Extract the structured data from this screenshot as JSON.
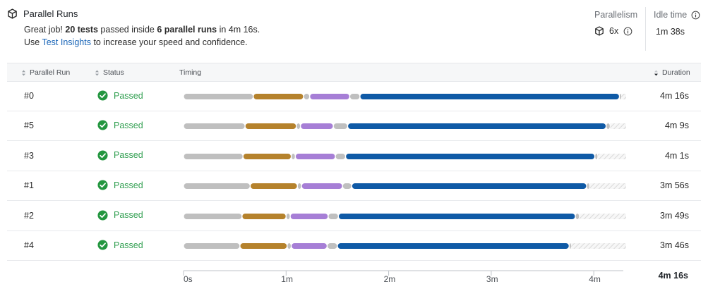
{
  "header": {
    "icon": "cube-icon",
    "title": "Parallel Runs",
    "msg_prefix": "Great job! ",
    "msg_tests": "20 tests",
    "msg_mid": " passed inside ",
    "msg_runs": "6 parallel runs",
    "msg_suffix": " in 4m 16s.",
    "msg2_prefix": "Use ",
    "msg2_link": "Test Insights",
    "msg2_suffix": " to increase your speed and confidence."
  },
  "metrics": {
    "parallelism_label": "Parallelism",
    "parallelism_value": "6x",
    "idle_label": "Idle time",
    "idle_value": "1m 38s"
  },
  "table": {
    "columns": {
      "run": "Parallel Run",
      "status": "Status",
      "timing": "Timing",
      "duration": "Duration"
    },
    "rows": [
      {
        "run": "#0",
        "status": "Passed",
        "duration": "4m 16s",
        "seg": [
          [
            0,
            0.68,
            "gray"
          ],
          [
            0.68,
            1.17,
            "orange"
          ],
          [
            1.17,
            1.23,
            "gray"
          ],
          [
            1.23,
            1.62,
            "purple"
          ],
          [
            1.62,
            1.72,
            "gray"
          ],
          [
            1.72,
            4.25,
            "blue"
          ],
          [
            4.25,
            4.27,
            "gray"
          ]
        ]
      },
      {
        "run": "#5",
        "status": "Passed",
        "duration": "4m 9s",
        "seg": [
          [
            0,
            0.6,
            "gray"
          ],
          [
            0.6,
            1.1,
            "orange"
          ],
          [
            1.1,
            1.14,
            "gray"
          ],
          [
            1.14,
            1.46,
            "purple"
          ],
          [
            1.46,
            1.6,
            "gray"
          ],
          [
            1.6,
            4.12,
            "blue"
          ],
          [
            4.12,
            4.16,
            "gray"
          ]
        ]
      },
      {
        "run": "#3",
        "status": "Passed",
        "duration": "4m 1s",
        "seg": [
          [
            0,
            0.58,
            "gray"
          ],
          [
            0.58,
            1.05,
            "orange"
          ],
          [
            1.05,
            1.09,
            "gray"
          ],
          [
            1.09,
            1.48,
            "purple"
          ],
          [
            1.48,
            1.58,
            "gray"
          ],
          [
            1.58,
            4.01,
            "blue"
          ],
          [
            4.01,
            4.04,
            "gray"
          ]
        ]
      },
      {
        "run": "#1",
        "status": "Passed",
        "duration": "3m 56s",
        "seg": [
          [
            0,
            0.65,
            "gray"
          ],
          [
            0.65,
            1.11,
            "orange"
          ],
          [
            1.11,
            1.15,
            "gray"
          ],
          [
            1.15,
            1.55,
            "purple"
          ],
          [
            1.55,
            1.64,
            "gray"
          ],
          [
            1.64,
            3.93,
            "blue"
          ],
          [
            3.93,
            3.96,
            "gray"
          ]
        ]
      },
      {
        "run": "#2",
        "status": "Passed",
        "duration": "3m 49s",
        "seg": [
          [
            0,
            0.57,
            "gray"
          ],
          [
            0.57,
            1.0,
            "orange"
          ],
          [
            1.0,
            1.04,
            "gray"
          ],
          [
            1.04,
            1.41,
            "purple"
          ],
          [
            1.41,
            1.51,
            "gray"
          ],
          [
            1.51,
            3.82,
            "blue"
          ],
          [
            3.82,
            3.86,
            "gray"
          ]
        ]
      },
      {
        "run": "#4",
        "status": "Passed",
        "duration": "3m 46s",
        "seg": [
          [
            0,
            0.55,
            "gray"
          ],
          [
            0.55,
            1.01,
            "orange"
          ],
          [
            1.01,
            1.05,
            "gray"
          ],
          [
            1.05,
            1.4,
            "purple"
          ],
          [
            1.4,
            1.5,
            "gray"
          ],
          [
            1.5,
            3.76,
            "blue"
          ],
          [
            3.76,
            3.78,
            "gray"
          ]
        ]
      }
    ]
  },
  "axis": {
    "ticks": [
      "0s",
      "1m",
      "2m",
      "3m",
      "4m"
    ],
    "total": "4m 16s"
  },
  "chart_data": {
    "type": "timeline",
    "unit": "minutes",
    "xlim": [
      0,
      4.27
    ],
    "colors": {
      "gray": "#bfbfbf",
      "orange": "#b5822c",
      "purple": "#a67ed6",
      "blue": "#0f5aa6"
    }
  }
}
